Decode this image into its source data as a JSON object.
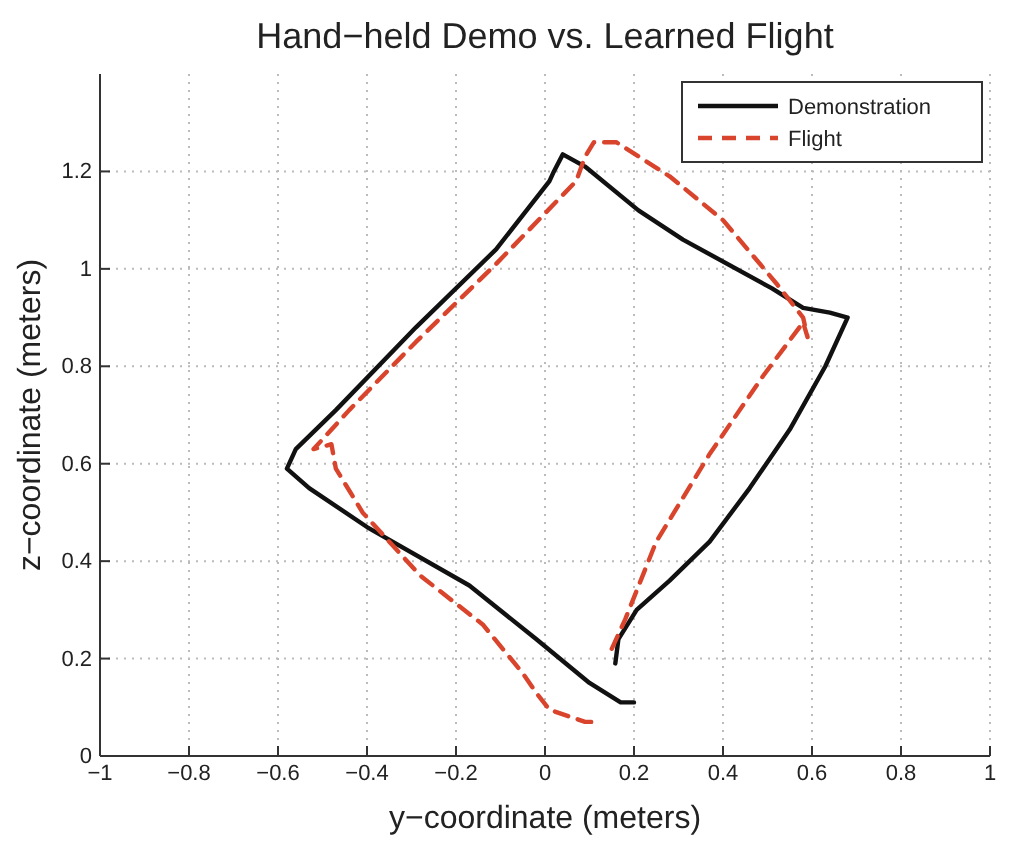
{
  "chart_data": {
    "type": "line",
    "title": "Hand−held Demo vs. Learned Flight",
    "xlabel": "y−coordinate (meters)",
    "ylabel": "z−coordinate (meters)",
    "xlim": [
      -1,
      1
    ],
    "ylim": [
      0,
      1.4
    ],
    "xticks": [
      {
        "value": -1,
        "label": "−1"
      },
      {
        "value": -0.8,
        "label": "−0.8"
      },
      {
        "value": -0.6,
        "label": "−0.6"
      },
      {
        "value": -0.4,
        "label": "−0.4"
      },
      {
        "value": -0.2,
        "label": "−0.2"
      },
      0,
      0.2,
      0.4,
      0.6,
      0.8,
      1
    ],
    "yticks": [
      0,
      0.2,
      0.4,
      0.6,
      0.8,
      1,
      1.2
    ],
    "grid": true,
    "legend": "top right",
    "series": [
      {
        "name": "Demonstration",
        "color": "#111111",
        "line_style": "solid",
        "x": [
          0.158,
          0.165,
          0.206,
          0.28,
          0.37,
          0.46,
          0.55,
          0.63,
          0.68,
          0.64,
          0.58,
          0.51,
          0.31,
          0.21,
          0.09,
          0.04,
          0.02,
          0.01,
          -0.11,
          -0.29,
          -0.47,
          -0.56,
          -0.58,
          -0.53,
          -0.4,
          -0.17,
          -0.02,
          0.1,
          0.17,
          0.2
        ],
        "values": [
          0.19,
          0.24,
          0.3,
          0.36,
          0.44,
          0.55,
          0.67,
          0.8,
          0.9,
          0.91,
          0.92,
          0.96,
          1.06,
          1.12,
          1.21,
          1.235,
          1.2,
          1.18,
          1.04,
          0.88,
          0.71,
          0.63,
          0.59,
          0.55,
          0.47,
          0.35,
          0.24,
          0.15,
          0.11,
          0.11
        ]
      },
      {
        "name": "Flight",
        "color": "#d9442c",
        "line_style": "dashed",
        "x": [
          0.15,
          0.18,
          0.25,
          0.37,
          0.49,
          0.58,
          0.59,
          0.58,
          0.52,
          0.4,
          0.28,
          0.16,
          0.11,
          0.09,
          0.07,
          -0.11,
          -0.29,
          -0.44,
          -0.52,
          -0.48,
          -0.47,
          -0.41,
          -0.28,
          -0.14,
          -0.05,
          -0.02,
          0.01,
          0.09,
          0.11
        ],
        "values": [
          0.22,
          0.28,
          0.44,
          0.62,
          0.78,
          0.89,
          0.86,
          0.9,
          0.97,
          1.1,
          1.19,
          1.26,
          1.26,
          1.23,
          1.18,
          1.01,
          0.85,
          0.71,
          0.63,
          0.64,
          0.59,
          0.5,
          0.37,
          0.27,
          0.17,
          0.13,
          0.095,
          0.07,
          0.07
        ]
      }
    ]
  }
}
